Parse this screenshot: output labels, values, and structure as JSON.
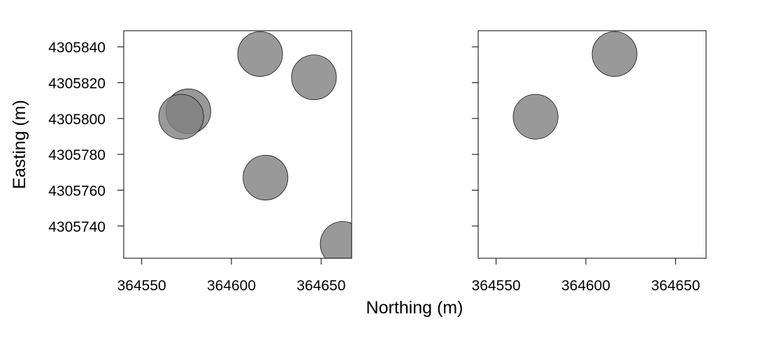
{
  "figure": {
    "xlabel": "Northing (m)",
    "ylabel": "Easting (m)"
  },
  "chart_data": [
    {
      "type": "scatter",
      "panel": "left",
      "xlim": [
        364540,
        364667
      ],
      "ylim": [
        4305722,
        4305849
      ],
      "x_ticks": [
        364550,
        364600,
        364650
      ],
      "y_ticks": [
        4305740,
        4305760,
        4305780,
        4305800,
        4305820,
        4305840
      ],
      "show_x_tick_labels": true,
      "show_y_tick_labels": true,
      "marker_color": "#808080",
      "marker_opacity": 0.8,
      "marker_radius_data_units": 12.5,
      "points": [
        {
          "x": 364616,
          "y": 4305836
        },
        {
          "x": 364646,
          "y": 4305823
        },
        {
          "x": 364576,
          "y": 4305804
        },
        {
          "x": 364572,
          "y": 4305801
        },
        {
          "x": 364619,
          "y": 4305767
        },
        {
          "x": 364662,
          "y": 4305730
        }
      ]
    },
    {
      "type": "scatter",
      "panel": "right",
      "xlim": [
        364540,
        364667
      ],
      "ylim": [
        4305722,
        4305849
      ],
      "x_ticks": [
        364550,
        364600,
        364650
      ],
      "y_ticks": [
        4305740,
        4305760,
        4305780,
        4305800,
        4305820,
        4305840
      ],
      "show_x_tick_labels": true,
      "show_y_tick_labels": false,
      "marker_color": "#808080",
      "marker_opacity": 0.8,
      "marker_radius_data_units": 12.5,
      "points": [
        {
          "x": 364616,
          "y": 4305836
        },
        {
          "x": 364572,
          "y": 4305801
        }
      ]
    }
  ]
}
